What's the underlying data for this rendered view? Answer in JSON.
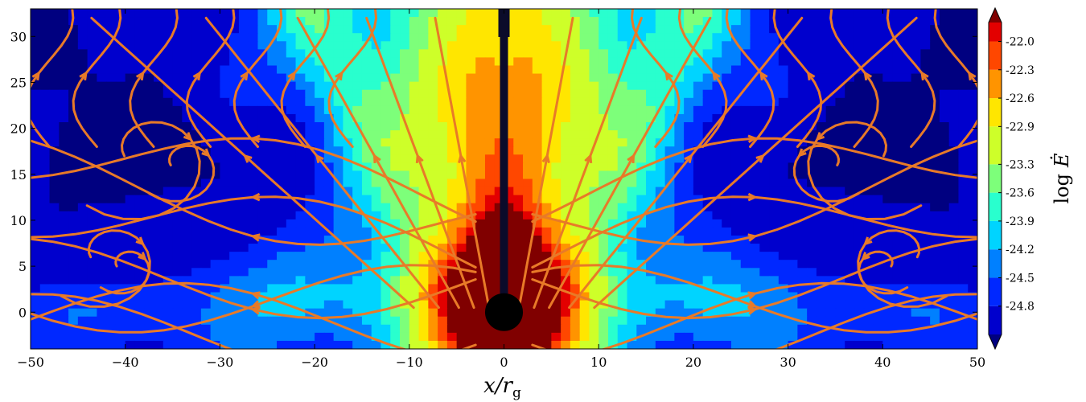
{
  "chart_data": {
    "type": "heatmap",
    "title": "",
    "xlabel": "x/r_g",
    "xlabel_main": "x/r",
    "xlabel_sub": "g",
    "ylabel": "",
    "xlim": [
      -50,
      50
    ],
    "ylim": [
      -4,
      33
    ],
    "x_ticks": [
      -50,
      -40,
      -30,
      -20,
      -10,
      0,
      10,
      20,
      30,
      40,
      50
    ],
    "x_tick_labels": [
      "−50",
      "−40",
      "−30",
      "−20",
      "−10",
      "0",
      "10",
      "20",
      "30",
      "40",
      "50"
    ],
    "y_ticks": [
      0,
      5,
      10,
      15,
      20,
      25,
      30
    ],
    "y_tick_labels": [
      "0",
      "5",
      "10",
      "15",
      "20",
      "25",
      "30"
    ],
    "colorbar": {
      "label": "log Ė",
      "label_main": "log",
      "label_var": "Ė",
      "min": -25.1,
      "max": -21.8,
      "ticks": [
        -22.0,
        -22.3,
        -22.6,
        -22.9,
        -23.3,
        -23.6,
        -23.9,
        -24.2,
        -24.5,
        -24.8
      ],
      "tick_labels": [
        "-22.0",
        "-22.3",
        "-22.6",
        "-22.9",
        "-23.3",
        "-23.6",
        "-23.9",
        "-24.2",
        "-24.5",
        "-24.8"
      ],
      "extend": "both",
      "colormap": "jet"
    },
    "contour_levels": [
      -25.1,
      -24.8,
      -24.5,
      -24.2,
      -23.9,
      -23.6,
      -23.3,
      -22.9,
      -22.6,
      -22.3,
      -22.0,
      -21.8
    ],
    "contour_colors": [
      "#000080",
      "#0000cd",
      "#0028ff",
      "#0080ff",
      "#00d4ff",
      "#29ffce",
      "#7dff7a",
      "#ceff29",
      "#ffe600",
      "#ff9400",
      "#ff4700",
      "#e30000",
      "#800000"
    ],
    "features": {
      "black_hole": {
        "x": 0,
        "y": 0,
        "radius": 2
      },
      "jet_axis": {
        "x": 0,
        "y_from": 0,
        "y_to": 33
      },
      "streamline_color": "#e87a28"
    }
  }
}
